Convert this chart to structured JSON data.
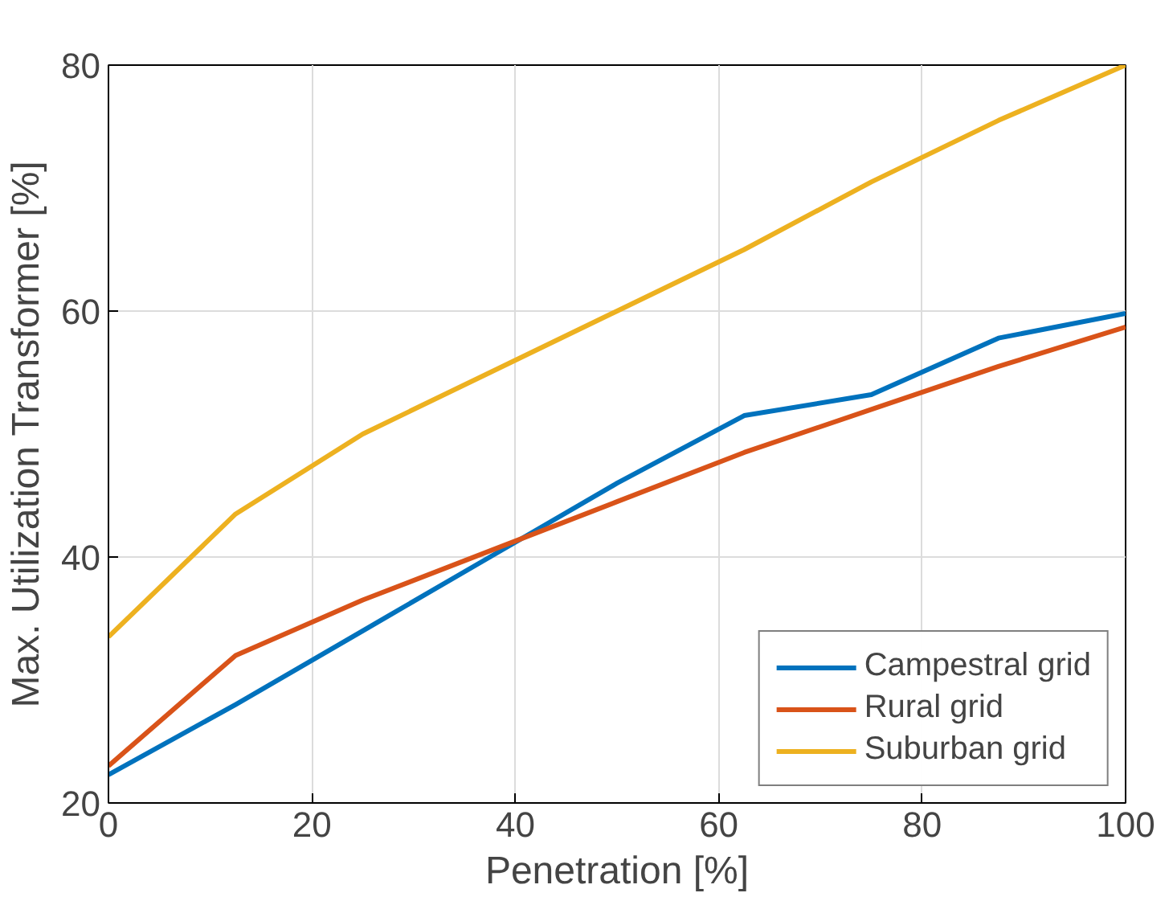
{
  "chart_data": {
    "type": "line",
    "xlabel": "Penetration [%]",
    "ylabel": "Max. Utilization Transformer [%]",
    "x": [
      0,
      12.5,
      25,
      37.5,
      50,
      62.5,
      75,
      87.5,
      100
    ],
    "series": [
      {
        "name": "Campestral grid",
        "color": "#0072bd",
        "values": [
          22.3,
          28,
          34,
          40,
          46,
          51.5,
          53.2,
          57.8,
          59.8
        ]
      },
      {
        "name": "Rural grid",
        "color": "#d95319",
        "values": [
          23,
          32,
          36.5,
          40.5,
          44.5,
          48.5,
          52,
          55.5,
          58.7
        ]
      },
      {
        "name": "Suburban grid",
        "color": "#edb120",
        "values": [
          33.5,
          43.5,
          50,
          55,
          60,
          65,
          70.5,
          75.5,
          80
        ]
      }
    ],
    "xlim": [
      0,
      100
    ],
    "ylim": [
      20,
      80
    ],
    "xticks": [
      0,
      20,
      40,
      60,
      80,
      100
    ],
    "yticks": [
      20,
      40,
      60,
      80
    ],
    "grid": true,
    "legend": "bottom right",
    "marker": "none",
    "line_style": "solid"
  }
}
